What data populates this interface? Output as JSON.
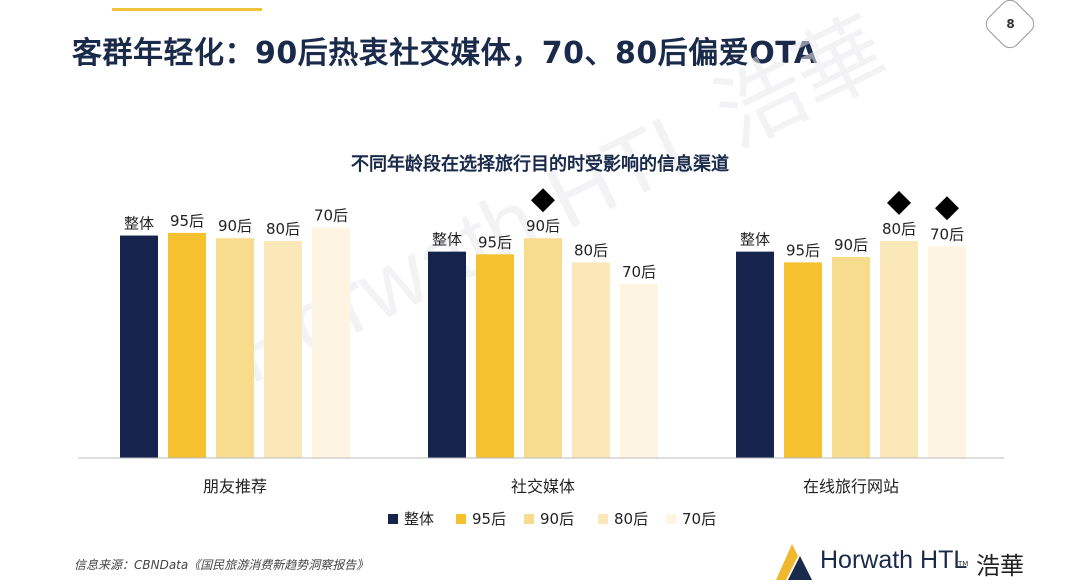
{
  "header": {
    "title": "客群年轻化：90后热衷社交媒体，70、80后偏爱OTA",
    "page_number": "8"
  },
  "source": "信息来源：CBNData《国民旅游消费新趋势洞察报告》",
  "brand": {
    "name": "Horwath HTL",
    "tm": "TM",
    "cn_name": "浩華",
    "watermark": "Horwath HTL 浩華"
  },
  "colors": {
    "series": [
      "#15234d",
      "#f5c12e",
      "#f8dc8e",
      "#fbe8b8",
      "#fdf5e2"
    ],
    "axis": "#bbbbbb",
    "marker": "#000000"
  },
  "chart_data": {
    "type": "bar",
    "title": "不同年龄段在选择旅行目的时受影响的信息渠道",
    "categories": [
      "朋友推荐",
      "社交媒体",
      "在线旅行网站"
    ],
    "series": [
      {
        "name": "整体",
        "values": [
          83,
          77,
          77
        ]
      },
      {
        "name": "95后",
        "values": [
          84,
          76,
          73
        ]
      },
      {
        "name": "90后",
        "values": [
          82,
          82,
          75
        ]
      },
      {
        "name": "80后",
        "values": [
          81,
          73,
          81
        ]
      },
      {
        "name": "70后",
        "values": [
          86,
          65,
          79
        ]
      }
    ],
    "highlighted": [
      {
        "category": 1,
        "series": 2
      },
      {
        "category": 2,
        "series": 3
      },
      {
        "category": 2,
        "series": 4
      }
    ],
    "ylim": [
      0,
      100
    ],
    "legend_position": "bottom",
    "grid": false
  }
}
